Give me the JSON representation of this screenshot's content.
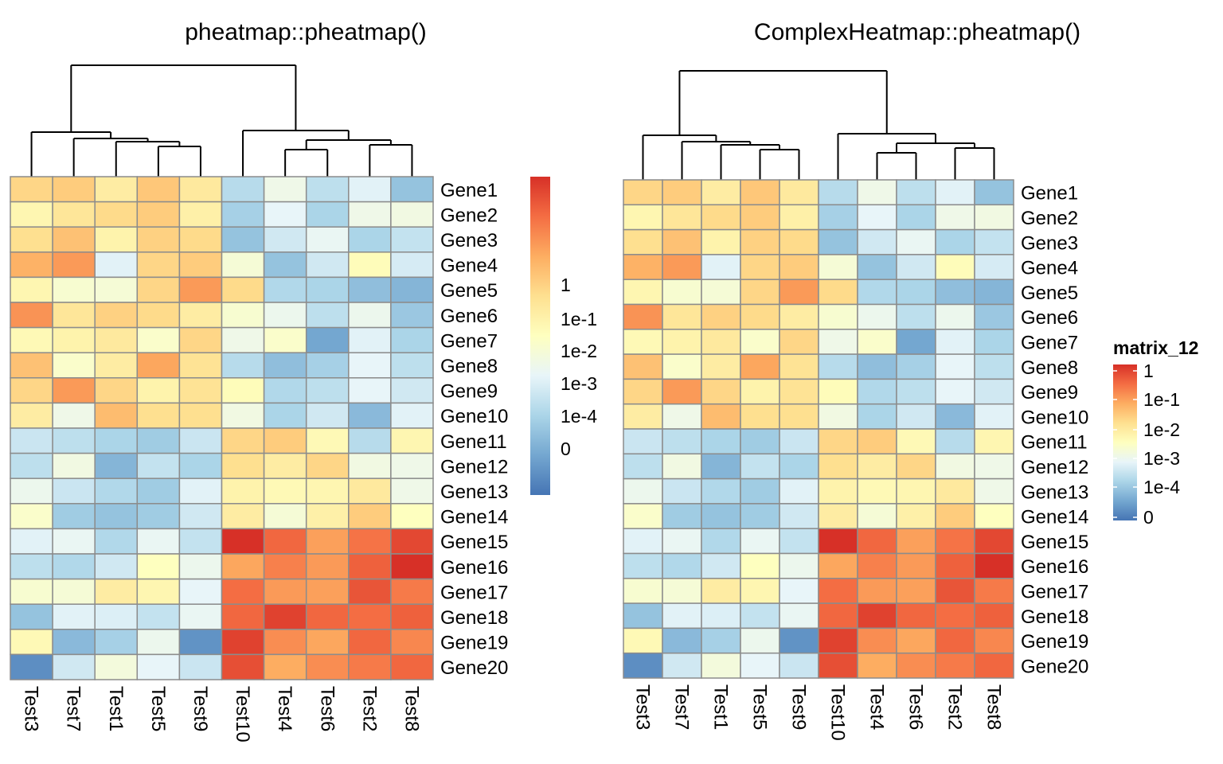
{
  "colors": {
    "scale": [
      "#4575B4",
      "#74A7D0",
      "#ABD5E8",
      "#E8F5F9",
      "#FEFFBF",
      "#FEE090",
      "#FDAD61",
      "#F46D43",
      "#D73027"
    ],
    "cell_border": "#8C8C8C",
    "tree": "#000000"
  },
  "chart_data": [
    {
      "type": "heatmap",
      "title": "pheatmap::pheatmap()",
      "columns": [
        "Test3",
        "Test7",
        "Test1",
        "Test5",
        "Test9",
        "Test10",
        "Test4",
        "Test6",
        "Test2",
        "Test8"
      ],
      "rows": [
        "Gene1",
        "Gene2",
        "Gene3",
        "Gene4",
        "Gene5",
        "Gene6",
        "Gene7",
        "Gene8",
        "Gene9",
        "Gene10",
        "Gene11",
        "Gene12",
        "Gene13",
        "Gene14",
        "Gene15",
        "Gene16",
        "Gene17",
        "Gene18",
        "Gene19",
        "Gene20"
      ],
      "values": [
        [
          5.2,
          5.4,
          4.6,
          5.5,
          4.7,
          2.2,
          3.3,
          2.3,
          2.9,
          1.6
        ],
        [
          4.3,
          4.8,
          5.1,
          5.4,
          4.5,
          1.9,
          3.0,
          2.0,
          3.3,
          3.4
        ],
        [
          5.0,
          5.6,
          4.4,
          5.3,
          5.1,
          1.6,
          2.6,
          3.1,
          2.0,
          2.4
        ],
        [
          5.9,
          6.3,
          2.9,
          5.2,
          5.4,
          3.6,
          1.6,
          2.6,
          4.1,
          2.7
        ],
        [
          4.3,
          3.7,
          3.6,
          5.2,
          6.3,
          5.1,
          2.1,
          2.0,
          1.5,
          1.3
        ],
        [
          6.4,
          4.8,
          5.3,
          5.1,
          4.6,
          3.7,
          3.2,
          2.3,
          3.2,
          1.7
        ],
        [
          4.2,
          4.4,
          4.7,
          3.8,
          5.2,
          3.3,
          3.8,
          1.0,
          2.9,
          2.0
        ],
        [
          5.6,
          3.8,
          4.6,
          6.1,
          4.9,
          2.2,
          1.5,
          1.9,
          3.0,
          2.3
        ],
        [
          5.2,
          6.3,
          5.2,
          4.4,
          4.9,
          4.1,
          2.1,
          2.3,
          3.0,
          2.6
        ],
        [
          4.6,
          3.3,
          5.7,
          5.0,
          5.0,
          3.4,
          2.0,
          2.6,
          1.4,
          2.9
        ],
        [
          2.5,
          2.3,
          2.0,
          1.8,
          2.5,
          5.2,
          5.4,
          4.2,
          2.2,
          4.3
        ],
        [
          2.3,
          3.4,
          1.3,
          2.4,
          2.0,
          5.0,
          4.6,
          5.2,
          3.4,
          3.3
        ],
        [
          3.2,
          2.5,
          2.1,
          1.8,
          2.9,
          4.4,
          4.2,
          4.3,
          4.7,
          3.3
        ],
        [
          3.8,
          1.8,
          1.6,
          1.8,
          2.6,
          4.6,
          3.6,
          4.5,
          5.4,
          4.0
        ],
        [
          2.9,
          3.1,
          2.1,
          3.1,
          2.4,
          8.0,
          7.1,
          6.2,
          6.9,
          7.6
        ],
        [
          2.3,
          2.1,
          2.6,
          4.0,
          3.2,
          6.1,
          6.7,
          6.3,
          7.2,
          8.0
        ],
        [
          3.7,
          3.6,
          4.6,
          4.3,
          3.0,
          7.0,
          6.3,
          6.2,
          7.4,
          6.8
        ],
        [
          1.6,
          2.9,
          2.8,
          2.4,
          3.1,
          7.1,
          7.7,
          7.1,
          7.0,
          7.2
        ],
        [
          4.2,
          1.4,
          1.9,
          3.2,
          0.6,
          7.7,
          6.5,
          6.1,
          7.1,
          6.6
        ],
        [
          0.5,
          2.6,
          3.5,
          3.0,
          2.5,
          7.5,
          6.0,
          6.5,
          6.8,
          7.1
        ]
      ],
      "legend": {
        "title": "",
        "ticks": [
          "1",
          "1e-1",
          "1e-2",
          "1e-3",
          "1e-4",
          "0"
        ]
      }
    },
    {
      "type": "heatmap",
      "title": "ComplexHeatmap::pheatmap()",
      "columns": [
        "Test3",
        "Test7",
        "Test1",
        "Test5",
        "Test9",
        "Test10",
        "Test4",
        "Test6",
        "Test2",
        "Test8"
      ],
      "rows": [
        "Gene1",
        "Gene2",
        "Gene3",
        "Gene4",
        "Gene5",
        "Gene6",
        "Gene7",
        "Gene8",
        "Gene9",
        "Gene10",
        "Gene11",
        "Gene12",
        "Gene13",
        "Gene14",
        "Gene15",
        "Gene16",
        "Gene17",
        "Gene18",
        "Gene19",
        "Gene20"
      ],
      "values": [
        [
          5.2,
          5.4,
          4.6,
          5.5,
          4.7,
          2.2,
          3.3,
          2.3,
          2.9,
          1.6
        ],
        [
          4.3,
          4.8,
          5.1,
          5.4,
          4.5,
          1.9,
          3.0,
          2.0,
          3.3,
          3.4
        ],
        [
          5.0,
          5.6,
          4.4,
          5.3,
          5.1,
          1.6,
          2.6,
          3.1,
          2.0,
          2.4
        ],
        [
          5.9,
          6.3,
          2.9,
          5.2,
          5.4,
          3.6,
          1.6,
          2.6,
          4.1,
          2.7
        ],
        [
          4.3,
          3.7,
          3.6,
          5.2,
          6.3,
          5.1,
          2.1,
          2.0,
          1.5,
          1.3
        ],
        [
          6.4,
          4.8,
          5.3,
          5.1,
          4.6,
          3.7,
          3.2,
          2.3,
          3.2,
          1.7
        ],
        [
          4.2,
          4.4,
          4.7,
          3.8,
          5.2,
          3.3,
          3.8,
          1.0,
          2.9,
          2.0
        ],
        [
          5.6,
          3.8,
          4.6,
          6.1,
          4.9,
          2.2,
          1.5,
          1.9,
          3.0,
          2.3
        ],
        [
          5.2,
          6.3,
          5.2,
          4.4,
          4.9,
          4.1,
          2.1,
          2.3,
          3.0,
          2.6
        ],
        [
          4.6,
          3.3,
          5.7,
          5.0,
          5.0,
          3.4,
          2.0,
          2.6,
          1.4,
          2.9
        ],
        [
          2.5,
          2.3,
          2.0,
          1.8,
          2.5,
          5.2,
          5.4,
          4.2,
          2.2,
          4.3
        ],
        [
          2.3,
          3.4,
          1.3,
          2.4,
          2.0,
          5.0,
          4.6,
          5.2,
          3.4,
          3.3
        ],
        [
          3.2,
          2.5,
          2.1,
          1.8,
          2.9,
          4.4,
          4.2,
          4.3,
          4.7,
          3.3
        ],
        [
          3.8,
          1.8,
          1.6,
          1.8,
          2.6,
          4.6,
          3.6,
          4.5,
          5.4,
          4.0
        ],
        [
          2.9,
          3.1,
          2.1,
          3.1,
          2.4,
          8.0,
          7.1,
          6.2,
          6.9,
          7.6
        ],
        [
          2.3,
          2.1,
          2.6,
          4.0,
          3.2,
          6.1,
          6.7,
          6.3,
          7.2,
          8.0
        ],
        [
          3.7,
          3.6,
          4.6,
          4.3,
          3.0,
          7.0,
          6.3,
          6.2,
          7.4,
          6.8
        ],
        [
          1.6,
          2.9,
          2.8,
          2.4,
          3.1,
          7.1,
          7.7,
          7.1,
          7.0,
          7.2
        ],
        [
          4.2,
          1.4,
          1.9,
          3.2,
          0.6,
          7.7,
          6.5,
          6.1,
          7.1,
          6.6
        ],
        [
          0.5,
          2.6,
          3.5,
          3.0,
          2.5,
          7.5,
          6.0,
          6.5,
          6.8,
          7.1
        ]
      ],
      "legend": {
        "title": "matrix_12",
        "ticks": [
          "1",
          "1e-1",
          "1e-2",
          "1e-3",
          "1e-4",
          "0"
        ]
      }
    }
  ]
}
